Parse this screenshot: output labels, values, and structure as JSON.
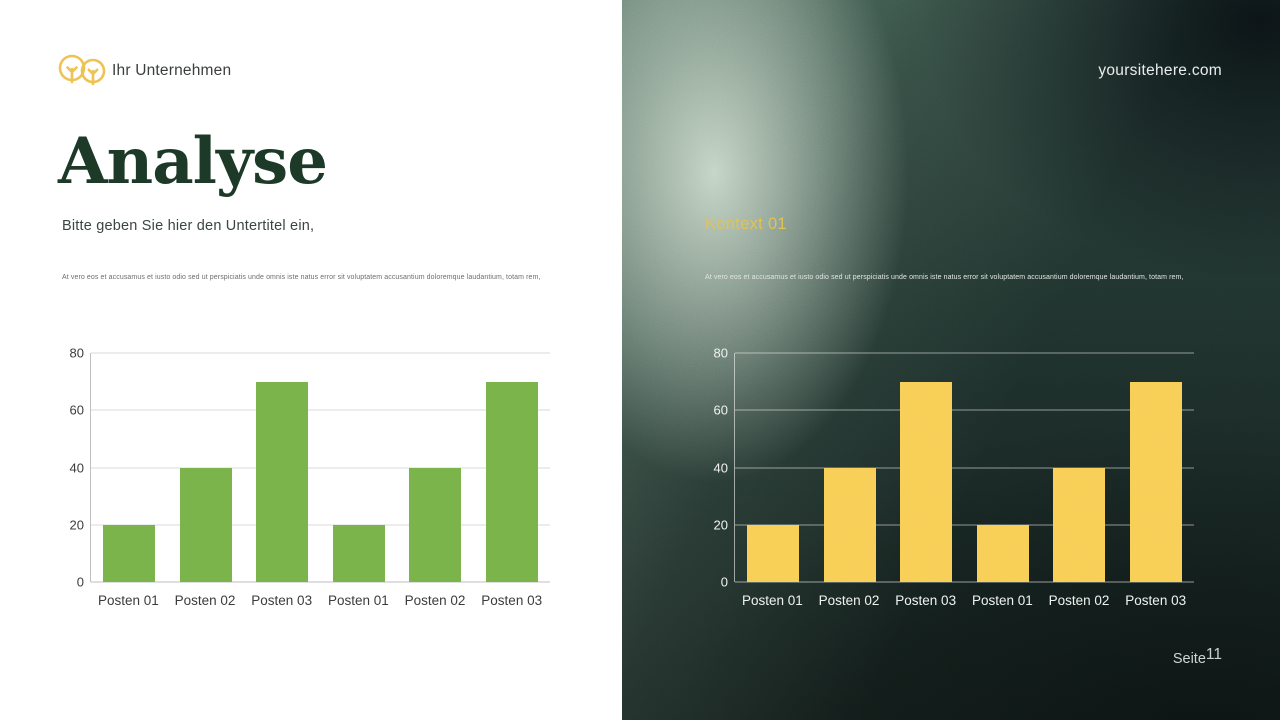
{
  "left_page": {
    "company_name": "Ihr Unternehmen",
    "title": "Analyse",
    "subtitle": "Bitte geben Sie hier den Untertitel ein,",
    "body_text": "At vero eos et accusamus et iusto odio sed ut perspiciatis unde omnis iste natus error sit voluptatem accusantium doloremque laudantium, totam rem,"
  },
  "right_page": {
    "website": "yoursitehere.com",
    "section_heading": "Kontext 01",
    "body_text": "At vero eos et accusamus et iusto odio sed ut perspiciatis unde omnis iste natus error sit voluptatem accusantium doloremque laudantium, totam rem,",
    "page_label": "Seite",
    "page_number": "11"
  },
  "colors": {
    "title_green": "#1d3a29",
    "logo_yellow": "#eec352",
    "heading_yellow": "#e2bf4e",
    "bar_green": "#7cb44c",
    "bar_yellow": "#f8ce55",
    "right_background": "#1a2926"
  },
  "chart_data": [
    {
      "type": "bar",
      "title": "",
      "xlabel": "",
      "ylabel": "",
      "categories": [
        "Posten 01",
        "Posten 02",
        "Posten 03",
        "Posten 01",
        "Posten 02",
        "Posten 03"
      ],
      "values": [
        20,
        40,
        70,
        20,
        40,
        70
      ],
      "ylim": [
        0,
        80
      ],
      "yticks": [
        0,
        20,
        40,
        60,
        80
      ],
      "grid": true,
      "legend": false,
      "bar_color": "#7cb44c",
      "text_color": "#3c3c3c",
      "grid_color": "#d9d9d9",
      "axis_color": "#bfbfbf"
    },
    {
      "type": "bar",
      "title": "",
      "xlabel": "",
      "ylabel": "",
      "categories": [
        "Posten 01",
        "Posten 02",
        "Posten 03",
        "Posten 01",
        "Posten 02",
        "Posten 03"
      ],
      "values": [
        20,
        40,
        70,
        20,
        40,
        70
      ],
      "ylim": [
        0,
        80
      ],
      "yticks": [
        0,
        20,
        40,
        60,
        80
      ],
      "grid": true,
      "legend": false,
      "bar_color": "#f8ce55",
      "text_color": "#eef2ef",
      "grid_color": "rgba(255,255,255,0.5)",
      "axis_color": "rgba(255,255,255,0.55)"
    }
  ]
}
